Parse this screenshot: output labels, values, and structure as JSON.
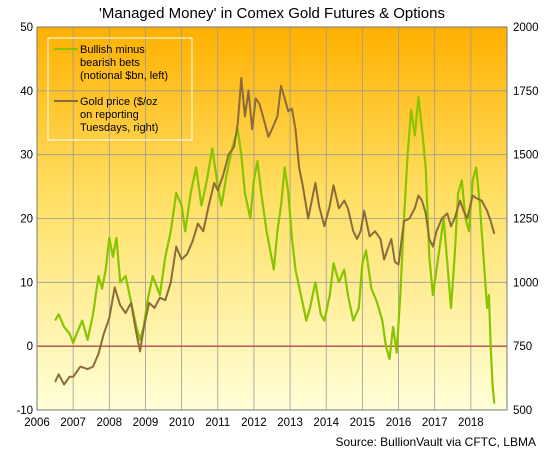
{
  "chart_data": {
    "type": "line",
    "title": "'Managed Money' in Comex Gold Futures & Options",
    "source": "Source: BullionVault via CFTC, LBMA",
    "x_ticks": [
      "2006",
      "2007",
      "2008",
      "2009",
      "2010",
      "2011",
      "2012",
      "2013",
      "2014",
      "2015",
      "2016",
      "2017",
      "2018"
    ],
    "xlim": [
      2006,
      2019
    ],
    "left_axis": {
      "ylim": [
        -10,
        50
      ],
      "ticks": [
        "-10",
        "0",
        "10",
        "20",
        "30",
        "40",
        "50"
      ]
    },
    "right_axis": {
      "ylim": [
        500,
        2000
      ],
      "ticks": [
        "500",
        "750",
        "1000",
        "1250",
        "1500",
        "1750",
        "2000"
      ]
    },
    "grid": true,
    "legend_placement": "top-left",
    "series": [
      {
        "name": "Bullish minus bearish bets (notional $bn, left)",
        "axis": "left",
        "color": "#88c400",
        "points": [
          [
            2006.5,
            4
          ],
          [
            2006.6,
            5
          ],
          [
            2006.75,
            3
          ],
          [
            2006.9,
            2
          ],
          [
            2007.0,
            0.5
          ],
          [
            2007.1,
            2
          ],
          [
            2007.25,
            4
          ],
          [
            2007.4,
            1
          ],
          [
            2007.55,
            5
          ],
          [
            2007.7,
            11
          ],
          [
            2007.8,
            9
          ],
          [
            2007.9,
            12
          ],
          [
            2008.0,
            17
          ],
          [
            2008.1,
            14
          ],
          [
            2008.2,
            17
          ],
          [
            2008.3,
            10
          ],
          [
            2008.45,
            11
          ],
          [
            2008.6,
            7
          ],
          [
            2008.75,
            3
          ],
          [
            2008.85,
            1
          ],
          [
            2008.95,
            3
          ],
          [
            2009.05,
            7
          ],
          [
            2009.2,
            11
          ],
          [
            2009.4,
            8
          ],
          [
            2009.55,
            14
          ],
          [
            2009.7,
            18
          ],
          [
            2009.85,
            24
          ],
          [
            2010.0,
            22
          ],
          [
            2010.1,
            18
          ],
          [
            2010.25,
            24
          ],
          [
            2010.4,
            28
          ],
          [
            2010.55,
            22
          ],
          [
            2010.7,
            26
          ],
          [
            2010.85,
            31
          ],
          [
            2011.0,
            25
          ],
          [
            2011.1,
            22
          ],
          [
            2011.25,
            27
          ],
          [
            2011.4,
            31
          ],
          [
            2011.55,
            34
          ],
          [
            2011.65,
            30
          ],
          [
            2011.75,
            24
          ],
          [
            2011.9,
            20
          ],
          [
            2012.0,
            26
          ],
          [
            2012.1,
            29
          ],
          [
            2012.2,
            24
          ],
          [
            2012.35,
            18
          ],
          [
            2012.45,
            15
          ],
          [
            2012.55,
            12
          ],
          [
            2012.65,
            18
          ],
          [
            2012.75,
            22
          ],
          [
            2012.85,
            28
          ],
          [
            2012.95,
            24
          ],
          [
            2013.05,
            17
          ],
          [
            2013.15,
            12
          ],
          [
            2013.3,
            8
          ],
          [
            2013.45,
            4
          ],
          [
            2013.55,
            6
          ],
          [
            2013.7,
            10
          ],
          [
            2013.85,
            5
          ],
          [
            2013.95,
            4
          ],
          [
            2014.1,
            8
          ],
          [
            2014.2,
            13
          ],
          [
            2014.35,
            10
          ],
          [
            2014.5,
            12
          ],
          [
            2014.6,
            8
          ],
          [
            2014.75,
            4
          ],
          [
            2014.9,
            6
          ],
          [
            2015.0,
            13
          ],
          [
            2015.1,
            15
          ],
          [
            2015.25,
            9
          ],
          [
            2015.4,
            7
          ],
          [
            2015.55,
            4
          ],
          [
            2015.65,
            0
          ],
          [
            2015.75,
            -2
          ],
          [
            2015.85,
            3
          ],
          [
            2015.95,
            -1
          ],
          [
            2016.05,
            8
          ],
          [
            2016.15,
            20
          ],
          [
            2016.25,
            30
          ],
          [
            2016.35,
            37
          ],
          [
            2016.45,
            33
          ],
          [
            2016.55,
            39
          ],
          [
            2016.65,
            34
          ],
          [
            2016.75,
            28
          ],
          [
            2016.85,
            14
          ],
          [
            2016.95,
            8
          ],
          [
            2017.05,
            12
          ],
          [
            2017.15,
            16
          ],
          [
            2017.25,
            20
          ],
          [
            2017.35,
            13
          ],
          [
            2017.45,
            6
          ],
          [
            2017.55,
            14
          ],
          [
            2017.65,
            24
          ],
          [
            2017.75,
            26
          ],
          [
            2017.85,
            20
          ],
          [
            2017.95,
            18
          ],
          [
            2018.05,
            26
          ],
          [
            2018.15,
            28
          ],
          [
            2018.25,
            22
          ],
          [
            2018.35,
            14
          ],
          [
            2018.45,
            6
          ],
          [
            2018.5,
            8
          ],
          [
            2018.55,
            0
          ],
          [
            2018.6,
            -6
          ],
          [
            2018.65,
            -9
          ]
        ]
      },
      {
        "name": "Gold price ($/oz on reporting Tuesdays, right)",
        "axis": "right",
        "color": "#8b6b3a",
        "points": [
          [
            2006.5,
            610
          ],
          [
            2006.6,
            640
          ],
          [
            2006.75,
            600
          ],
          [
            2006.9,
            630
          ],
          [
            2007.0,
            630
          ],
          [
            2007.2,
            670
          ],
          [
            2007.4,
            660
          ],
          [
            2007.55,
            670
          ],
          [
            2007.7,
            720
          ],
          [
            2007.85,
            800
          ],
          [
            2008.0,
            860
          ],
          [
            2008.15,
            980
          ],
          [
            2008.3,
            910
          ],
          [
            2008.45,
            880
          ],
          [
            2008.6,
            920
          ],
          [
            2008.75,
            800
          ],
          [
            2008.85,
            730
          ],
          [
            2008.95,
            820
          ],
          [
            2009.1,
            920
          ],
          [
            2009.25,
            900
          ],
          [
            2009.4,
            940
          ],
          [
            2009.55,
            930
          ],
          [
            2009.7,
            1000
          ],
          [
            2009.85,
            1140
          ],
          [
            2010.0,
            1090
          ],
          [
            2010.15,
            1110
          ],
          [
            2010.3,
            1160
          ],
          [
            2010.45,
            1230
          ],
          [
            2010.6,
            1200
          ],
          [
            2010.75,
            1300
          ],
          [
            2010.9,
            1390
          ],
          [
            2011.0,
            1360
          ],
          [
            2011.15,
            1420
          ],
          [
            2011.3,
            1500
          ],
          [
            2011.45,
            1530
          ],
          [
            2011.55,
            1620
          ],
          [
            2011.65,
            1800
          ],
          [
            2011.75,
            1650
          ],
          [
            2011.85,
            1750
          ],
          [
            2011.95,
            1600
          ],
          [
            2012.05,
            1720
          ],
          [
            2012.15,
            1700
          ],
          [
            2012.25,
            1650
          ],
          [
            2012.4,
            1570
          ],
          [
            2012.5,
            1600
          ],
          [
            2012.65,
            1650
          ],
          [
            2012.75,
            1770
          ],
          [
            2012.85,
            1720
          ],
          [
            2012.95,
            1670
          ],
          [
            2013.05,
            1680
          ],
          [
            2013.15,
            1600
          ],
          [
            2013.25,
            1450
          ],
          [
            2013.35,
            1380
          ],
          [
            2013.5,
            1250
          ],
          [
            2013.6,
            1320
          ],
          [
            2013.7,
            1390
          ],
          [
            2013.8,
            1300
          ],
          [
            2013.95,
            1220
          ],
          [
            2014.1,
            1300
          ],
          [
            2014.2,
            1380
          ],
          [
            2014.35,
            1290
          ],
          [
            2014.5,
            1320
          ],
          [
            2014.6,
            1290
          ],
          [
            2014.75,
            1200
          ],
          [
            2014.85,
            1170
          ],
          [
            2014.95,
            1200
          ],
          [
            2015.05,
            1280
          ],
          [
            2015.2,
            1180
          ],
          [
            2015.35,
            1200
          ],
          [
            2015.5,
            1170
          ],
          [
            2015.6,
            1090
          ],
          [
            2015.7,
            1130
          ],
          [
            2015.8,
            1170
          ],
          [
            2015.9,
            1080
          ],
          [
            2016.0,
            1070
          ],
          [
            2016.15,
            1240
          ],
          [
            2016.3,
            1250
          ],
          [
            2016.45,
            1290
          ],
          [
            2016.55,
            1340
          ],
          [
            2016.65,
            1320
          ],
          [
            2016.75,
            1270
          ],
          [
            2016.85,
            1170
          ],
          [
            2016.95,
            1140
          ],
          [
            2017.05,
            1200
          ],
          [
            2017.2,
            1250
          ],
          [
            2017.35,
            1270
          ],
          [
            2017.45,
            1220
          ],
          [
            2017.55,
            1250
          ],
          [
            2017.7,
            1320
          ],
          [
            2017.8,
            1280
          ],
          [
            2017.9,
            1250
          ],
          [
            2018.05,
            1340
          ],
          [
            2018.15,
            1330
          ],
          [
            2018.3,
            1320
          ],
          [
            2018.45,
            1280
          ],
          [
            2018.55,
            1240
          ],
          [
            2018.65,
            1190
          ]
        ]
      }
    ],
    "legend": {
      "entries": [
        {
          "lines": [
            "Bullish minus",
            "bearish bets",
            "(notional $bn, left)"
          ],
          "color": "#88c400"
        },
        {
          "lines": [
            "Gold price ($/oz",
            "on reporting",
            "Tuesdays, right)"
          ],
          "color": "#8b6b3a"
        }
      ]
    },
    "zero_line_color": "#a83232"
  }
}
